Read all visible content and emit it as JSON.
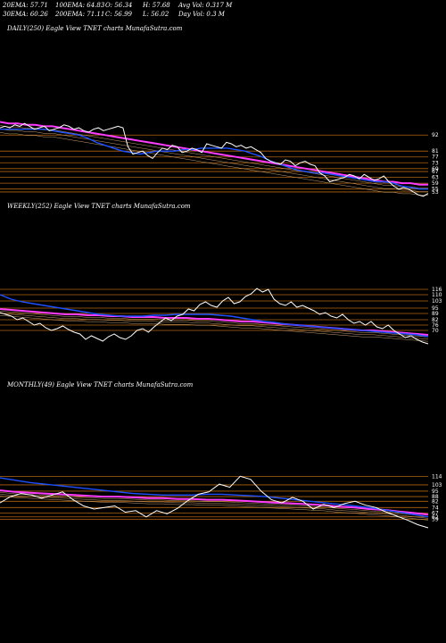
{
  "header": {
    "ema20": "20EMA: 57.71",
    "ema100": "100EMA: 64.83",
    "open": "O: 56.34",
    "high": "H: 57.68",
    "avg_vol": "Avg Vol: 0.317 M",
    "ema30": "30EMA: 60.26",
    "ema200": "200EMA: 71.11",
    "close": "C: 56.99",
    "low": "L: 56.02",
    "day_vol": "Day Vol: 0.3 M"
  },
  "colors": {
    "background": "#000000",
    "price": "#ffffff",
    "ema_fast": "#1e50ff",
    "ema_slow": "#ff3cff",
    "level_line": "#b06410",
    "ma_thin": "#c8a070"
  },
  "chart_data": [
    {
      "type": "line",
      "title": "DAILY(250) Eagle View TNET charts MunafaSutra.com",
      "y_tick_labels": [
        "92",
        "81",
        "77",
        "73",
        "69",
        "67",
        "63",
        "59",
        "55",
        "53"
      ],
      "price": [
        97,
        98,
        97,
        99,
        98,
        100,
        98,
        96,
        97,
        98,
        95,
        96,
        97,
        99,
        98,
        96,
        97,
        95,
        94,
        96,
        97,
        95,
        96,
        97,
        98,
        97,
        84,
        79,
        80,
        81,
        78,
        76,
        80,
        83,
        82,
        85,
        84,
        80,
        81,
        83,
        82,
        80,
        86,
        85,
        84,
        83,
        87,
        86,
        84,
        85,
        83,
        84,
        82,
        80,
        76,
        74,
        73,
        72,
        75,
        74,
        71,
        73,
        74,
        72,
        71,
        66,
        64,
        60,
        61,
        62,
        63,
        65,
        64,
        62,
        65,
        63,
        61,
        62,
        64,
        60,
        57,
        55,
        56,
        55,
        53,
        51,
        50,
        52
      ],
      "ema_fast": [
        96,
        96,
        96,
        96,
        96,
        96,
        95,
        94,
        93,
        92,
        90,
        87,
        85,
        83,
        81,
        80,
        79,
        80,
        81,
        81,
        81,
        82,
        82,
        83,
        83,
        83,
        83,
        82,
        81,
        79,
        77,
        74,
        72,
        70,
        68,
        67,
        66,
        66,
        65,
        64,
        63,
        62,
        61,
        60,
        60,
        59,
        57,
        56,
        55,
        55
      ],
      "ema_slow": [
        101,
        100,
        100,
        99,
        99,
        98,
        98,
        97,
        96,
        95,
        94,
        93,
        92,
        91,
        90,
        89,
        88,
        87,
        86,
        85,
        84,
        83,
        82,
        81,
        80,
        79,
        78,
        77,
        76,
        75,
        74,
        73,
        72,
        71,
        70,
        69,
        68,
        67,
        66,
        65,
        64,
        63,
        62,
        61,
        60,
        60,
        59,
        59,
        58,
        58
      ],
      "levels": [
        92,
        81,
        77,
        73,
        69,
        67,
        63,
        59,
        55,
        53
      ],
      "ylim": [
        45,
        105
      ]
    },
    {
      "type": "line",
      "title": "WEEKLY(252) Eagle View TNET charts MunafaSutra.com",
      "y_tick_labels": [
        "116",
        "110",
        "103",
        "95",
        "89",
        "82",
        "76",
        "70"
      ],
      "price": [
        90,
        88,
        86,
        82,
        84,
        80,
        76,
        78,
        73,
        70,
        72,
        75,
        71,
        68,
        66,
        60,
        64,
        61,
        58,
        63,
        66,
        62,
        60,
        64,
        70,
        72,
        68,
        74,
        79,
        84,
        81,
        86,
        88,
        94,
        92,
        99,
        102,
        98,
        96,
        103,
        107,
        100,
        102,
        108,
        111,
        117,
        113,
        116,
        105,
        100,
        98,
        102,
        96,
        98,
        95,
        92,
        88,
        90,
        86,
        84,
        88,
        82,
        78,
        80,
        76,
        80,
        74,
        72,
        76,
        70,
        66,
        62,
        64,
        60,
        57,
        55
      ],
      "ema_fast": [
        110,
        105,
        102,
        100,
        98,
        96,
        94,
        92,
        90,
        88,
        87,
        86,
        86,
        86,
        87,
        87,
        88,
        88,
        88,
        88,
        87,
        86,
        84,
        82,
        80,
        79,
        77,
        76,
        75,
        74,
        73,
        72,
        71,
        70,
        69,
        68,
        67,
        66,
        65,
        63
      ],
      "ema_slow": [
        94,
        93,
        92,
        91,
        90,
        89,
        88,
        88,
        87,
        87,
        86,
        86,
        85,
        85,
        85,
        84,
        84,
        84,
        83,
        83,
        82,
        81,
        80,
        80,
        79,
        78,
        77,
        76,
        75,
        74,
        73,
        72,
        71,
        70,
        70,
        69,
        68,
        67,
        66,
        65
      ],
      "levels": [
        116,
        110,
        103,
        95,
        89,
        82,
        76,
        70
      ],
      "ylim": [
        45,
        135
      ]
    },
    {
      "type": "line",
      "title": "MONTHLY(49) Eagle View TNET charts MunafaSutra.com",
      "y_tick_labels": [
        "114",
        "103",
        "95",
        "88",
        "82",
        "74",
        "67",
        "62",
        "59"
      ],
      "price": [
        80,
        88,
        92,
        90,
        86,
        90,
        94,
        84,
        76,
        72,
        74,
        76,
        68,
        70,
        62,
        70,
        66,
        73,
        83,
        91,
        94,
        104,
        100,
        114,
        110,
        95,
        84,
        80,
        87,
        82,
        72,
        78,
        74,
        79,
        82,
        77,
        74,
        68,
        63,
        58,
        52,
        48
      ],
      "ema_fast": [
        112,
        109,
        106,
        104,
        102,
        100,
        98,
        96,
        94,
        92,
        91,
        90,
        90,
        90,
        91,
        91,
        90,
        89,
        88,
        86,
        84,
        82,
        80,
        78,
        76,
        74,
        71,
        68,
        65,
        62
      ],
      "ema_slow": [
        96,
        94,
        93,
        92,
        91,
        90,
        89,
        88,
        88,
        87,
        86,
        86,
        85,
        85,
        84,
        84,
        83,
        82,
        81,
        80,
        79,
        78,
        77,
        75,
        74,
        72,
        71,
        69,
        67,
        65
      ],
      "levels": [
        114,
        103,
        95,
        88,
        82,
        74,
        67,
        62,
        59
      ],
      "ylim": [
        40,
        135
      ]
    }
  ]
}
